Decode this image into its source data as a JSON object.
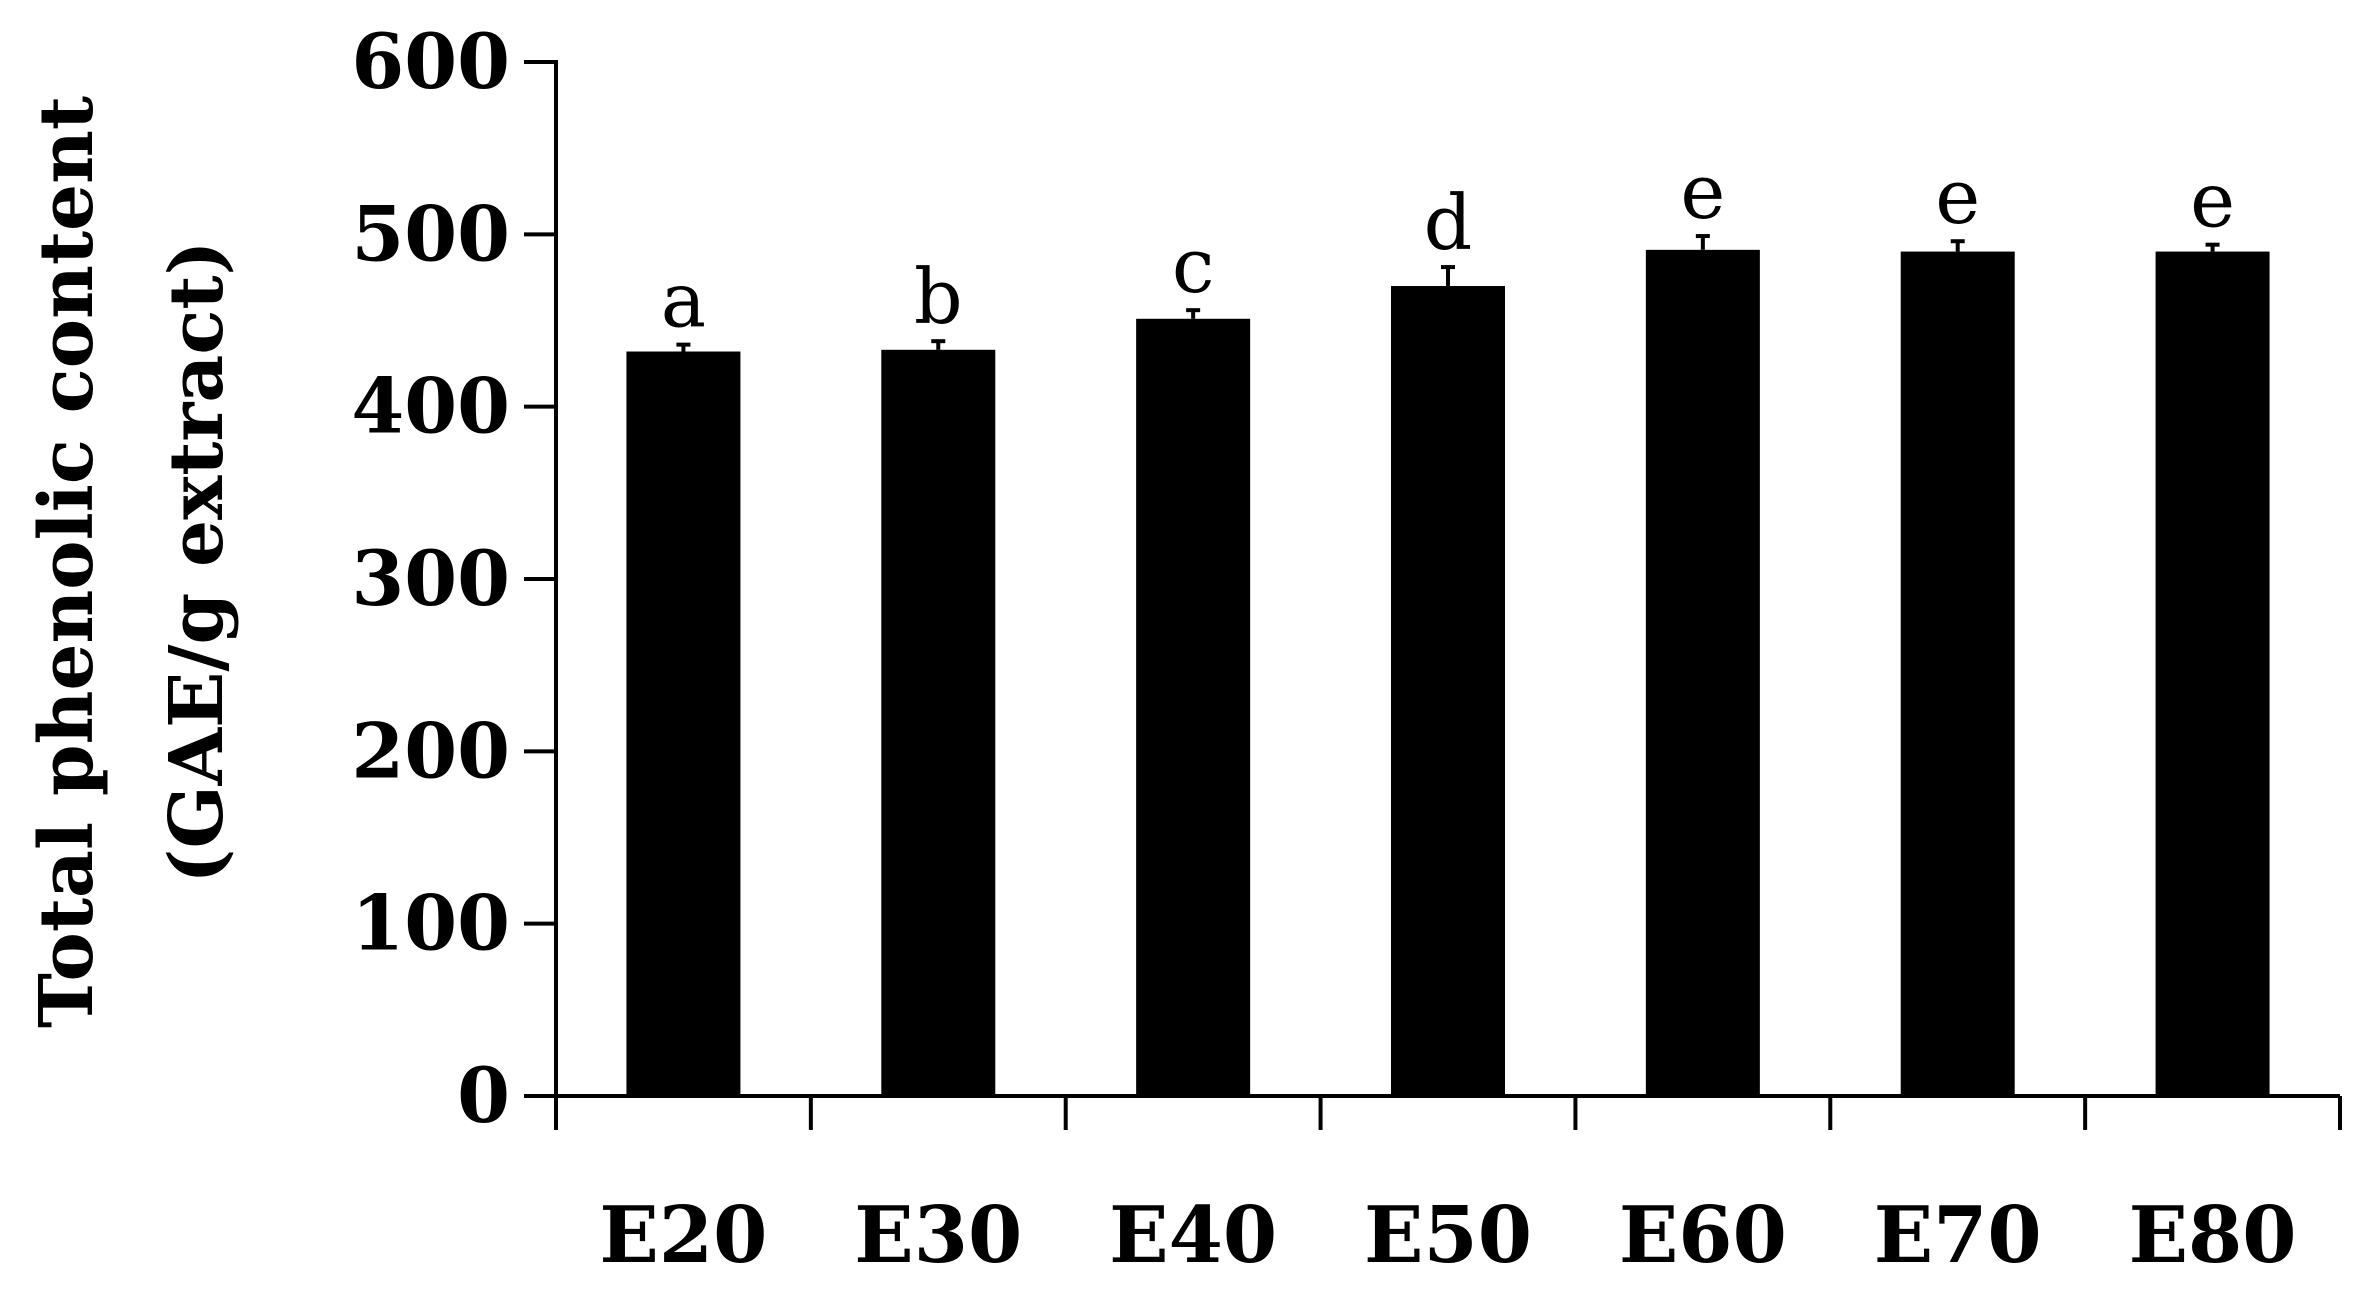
{
  "chart_data": {
    "type": "bar",
    "title": "",
    "xlabel": "",
    "ylabel_lines": [
      "Total phenolic content",
      "(GAE/g extract)"
    ],
    "categories": [
      "E20",
      "E30",
      "E40",
      "E50",
      "E60",
      "E70",
      "E80"
    ],
    "values": [
      432,
      433,
      451,
      470,
      491,
      490,
      490
    ],
    "errors": [
      4,
      5,
      5,
      11,
      8,
      6,
      4
    ],
    "significance_letters": [
      "a",
      "b",
      "c",
      "d",
      "e",
      "e",
      "e"
    ],
    "ylim": [
      0,
      600
    ],
    "yticks": [
      0,
      100,
      200,
      300,
      400,
      500,
      600
    ],
    "ytick_labels": [
      "0",
      "100",
      "200",
      "300",
      "400",
      "500",
      "600"
    ],
    "grid": false,
    "bar_color": "#000000",
    "axis_color": "#000000"
  }
}
